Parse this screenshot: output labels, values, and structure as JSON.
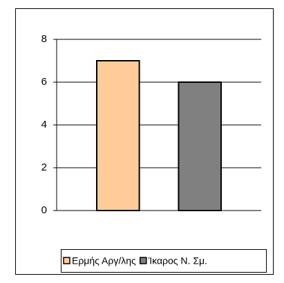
{
  "chart_data": {
    "type": "bar",
    "categories": [
      null
    ],
    "series": [
      {
        "name": "Ερμής Αργ/λης",
        "color": "#ffcc99",
        "values": [
          7
        ]
      },
      {
        "name": "Ίκαρος Ν. Σμ.",
        "color": "#808080",
        "values": [
          6
        ]
      }
    ],
    "ylim": [
      0,
      8
    ],
    "yticks": [
      0,
      2,
      4,
      6,
      8
    ],
    "grid": true,
    "legend": "bottom"
  }
}
